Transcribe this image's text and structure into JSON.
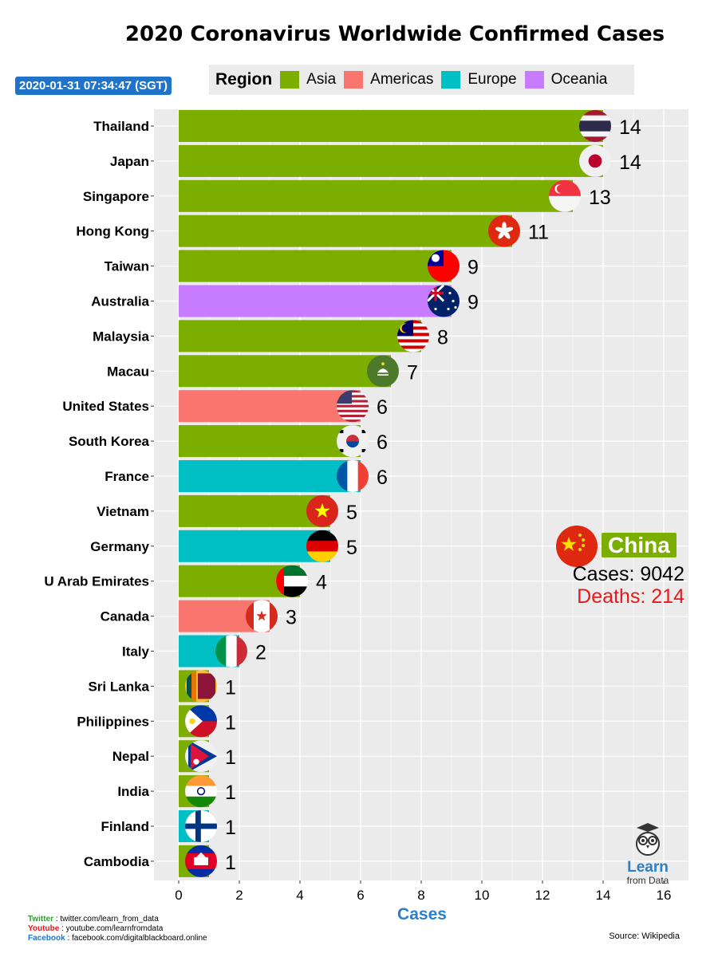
{
  "title": "2020 Coronavirus Worldwide Confirmed Cases",
  "timestamp": "2020-01-31 07:34:47 (SGT)",
  "legend": {
    "title": "Region",
    "items": [
      {
        "label": "Asia",
        "color": "#7CAE00"
      },
      {
        "label": "Americas",
        "color": "#F8766D"
      },
      {
        "label": "Europe",
        "color": "#00BFC4"
      },
      {
        "label": "Oceania",
        "color": "#C77CFF"
      }
    ]
  },
  "callout": {
    "name": "China",
    "cases": "Cases: 9042",
    "deaths": "Deaths: 214",
    "flag": "china-flag"
  },
  "footer": {
    "twitter_label": "Twitter",
    "twitter_value": " : twitter.com/learn_from_data",
    "youtube_label": "Youtube",
    "youtube_value": " : youtube.com/learnfromdata",
    "facebook_label": "Facebook",
    "facebook_value": " : facebook.com/digitalblackboard.online",
    "source": "Source: Wikipedia"
  },
  "logo": {
    "line1": "Learn",
    "line2": "from Data"
  },
  "chart_data": {
    "type": "bar",
    "orientation": "horizontal",
    "title": "2020 Coronavirus Worldwide Confirmed Cases",
    "xlabel": "Cases",
    "ylabel": "",
    "xlim": [
      0,
      16
    ],
    "xticks": [
      0,
      2,
      4,
      6,
      8,
      10,
      12,
      14,
      16
    ],
    "grid": true,
    "legend_position": "top",
    "categories": [
      "Thailand",
      "Japan",
      "Singapore",
      "Hong Kong",
      "Taiwan",
      "Australia",
      "Malaysia",
      "Macau",
      "United States",
      "South Korea",
      "France",
      "Vietnam",
      "Germany",
      "U Arab Emirates",
      "Canada",
      "Italy",
      "Sri Lanka",
      "Philippines",
      "Nepal",
      "India",
      "Finland",
      "Cambodia"
    ],
    "values": [
      14,
      14,
      13,
      11,
      9,
      9,
      8,
      7,
      6,
      6,
      6,
      5,
      5,
      4,
      3,
      2,
      1,
      1,
      1,
      1,
      1,
      1
    ],
    "regions": [
      "Asia",
      "Asia",
      "Asia",
      "Asia",
      "Asia",
      "Oceania",
      "Asia",
      "Asia",
      "Americas",
      "Asia",
      "Europe",
      "Asia",
      "Europe",
      "Asia",
      "Americas",
      "Europe",
      "Asia",
      "Asia",
      "Asia",
      "Asia",
      "Europe",
      "Asia"
    ],
    "flags": [
      "thailand",
      "japan",
      "singapore",
      "hong-kong",
      "taiwan",
      "australia",
      "malaysia",
      "macau",
      "usa",
      "south-korea",
      "france",
      "vietnam",
      "germany",
      "uae",
      "canada",
      "italy",
      "sri-lanka",
      "philippines",
      "nepal",
      "india",
      "finland",
      "cambodia"
    ]
  }
}
